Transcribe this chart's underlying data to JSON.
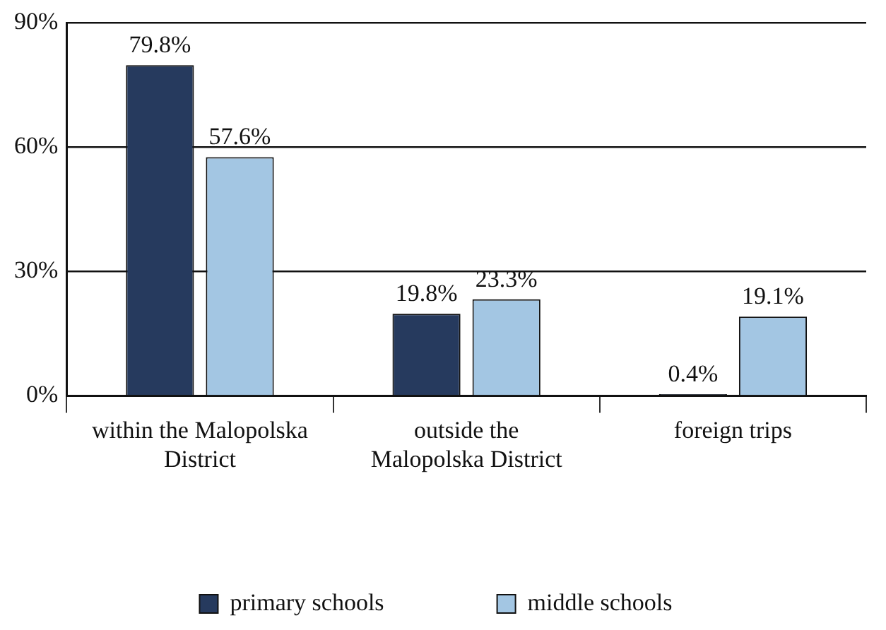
{
  "chart_data": {
    "type": "bar",
    "categories": [
      "within the Malopolska District",
      "outside the Malopolska District",
      "foreign trips"
    ],
    "series": [
      {
        "name": "primary schools",
        "color": "#263a5e",
        "values": [
          79.8,
          19.8,
          0.4
        ],
        "value_labels": [
          "79.8%",
          "19.8%",
          "0.4%"
        ]
      },
      {
        "name": "middle schools",
        "color": "#a3c6e3",
        "values": [
          57.6,
          23.3,
          19.1
        ],
        "value_labels": [
          "57.6%",
          "23.3%",
          "19.1%"
        ]
      }
    ],
    "ylim": [
      0,
      90
    ],
    "yticks": [
      {
        "value": 0,
        "label": "0%"
      },
      {
        "value": 30,
        "label": "30%"
      },
      {
        "value": 60,
        "label": "60%"
      },
      {
        "value": 90,
        "label": "90%"
      }
    ],
    "grid": "y",
    "legend": "bottom"
  }
}
